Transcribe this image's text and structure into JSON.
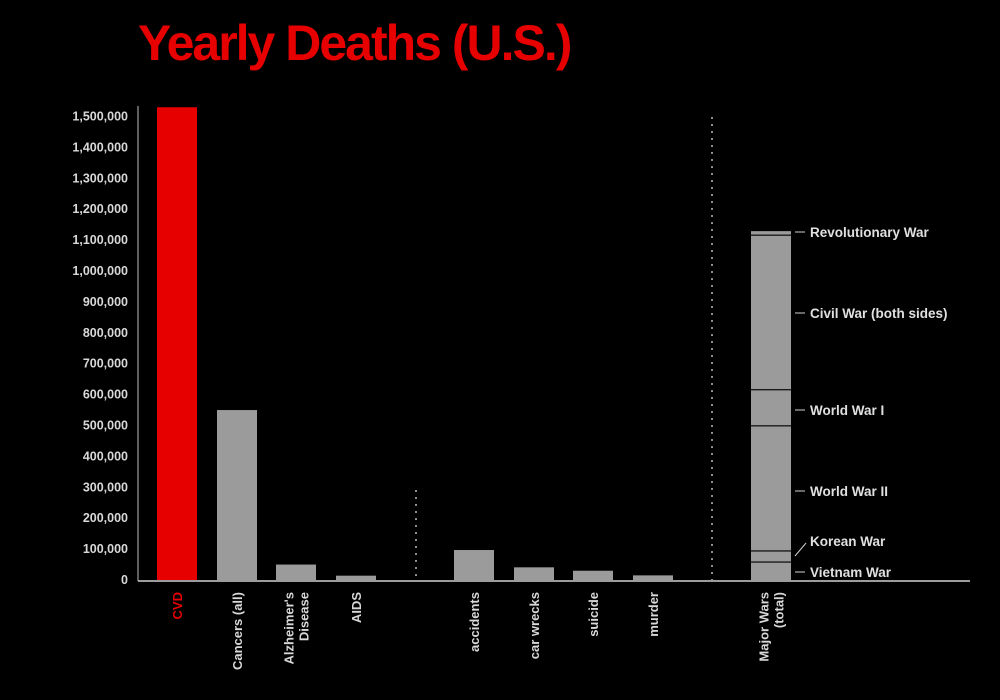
{
  "chart_data": {
    "type": "bar",
    "title": "Yearly Deaths (U.S.)",
    "xlabel": "",
    "ylabel": "",
    "ylim": [
      0,
      1500000
    ],
    "y_ticks": [
      {
        "value": 0,
        "label": "0"
      },
      {
        "value": 100000,
        "label": "100,000"
      },
      {
        "value": 200000,
        "label": "200,000"
      },
      {
        "value": 300000,
        "label": "300,000"
      },
      {
        "value": 400000,
        "label": "400,000"
      },
      {
        "value": 500000,
        "label": "500,000"
      },
      {
        "value": 600000,
        "label": "600,000"
      },
      {
        "value": 700000,
        "label": "700,000"
      },
      {
        "value": 800000,
        "label": "800,000"
      },
      {
        "value": 900000,
        "label": "900,000"
      },
      {
        "value": 1000000,
        "label": "1,000,000"
      },
      {
        "value": 1100000,
        "label": "1,100,000"
      },
      {
        "value": 1200000,
        "label": "1,200,000"
      },
      {
        "value": 1300000,
        "label": "1,300,000"
      },
      {
        "value": 1400000,
        "label": "1,400,000"
      },
      {
        "value": 1500000,
        "label": "1,500,000"
      }
    ],
    "categories": [
      {
        "label": [
          "CVD"
        ],
        "value": 1530000,
        "color": "#e60000"
      },
      {
        "label": [
          "Cancers (all)"
        ],
        "value": 550000,
        "color": "#9b9b9b"
      },
      {
        "label": [
          "Alzheimer's",
          "Disease"
        ],
        "value": 50000,
        "color": "#9b9b9b"
      },
      {
        "label": [
          "AIDS"
        ],
        "value": 14000,
        "color": "#9b9b9b"
      },
      {
        "label": [
          "accidents"
        ],
        "value": 97000,
        "color": "#9b9b9b"
      },
      {
        "label": [
          "car wrecks"
        ],
        "value": 41000,
        "color": "#9b9b9b"
      },
      {
        "label": [
          "suicide"
        ],
        "value": 30000,
        "color": "#9b9b9b"
      },
      {
        "label": [
          "murder"
        ],
        "value": 15000,
        "color": "#9b9b9b"
      },
      {
        "label": [
          "Major Wars",
          "(total)"
        ],
        "value": 1129000,
        "color": "#9b9b9b"
      }
    ],
    "stacked_bar": {
      "category": "Major Wars (total)",
      "segments": [
        {
          "name": "Vietnam War",
          "value": 58000
        },
        {
          "name": "Korean War",
          "value": 36000
        },
        {
          "name": "World War II",
          "value": 405000
        },
        {
          "name": "World War I",
          "value": 117000
        },
        {
          "name": "Civil War (both sides)",
          "value": 500000
        },
        {
          "name": "Revolutionary War",
          "value": 13000
        }
      ]
    },
    "grid": false,
    "legend": "none",
    "colors": {
      "highlight": "#e60000",
      "bars": "#9b9b9b",
      "background": "#000000",
      "text": "#d8d8d8"
    }
  }
}
